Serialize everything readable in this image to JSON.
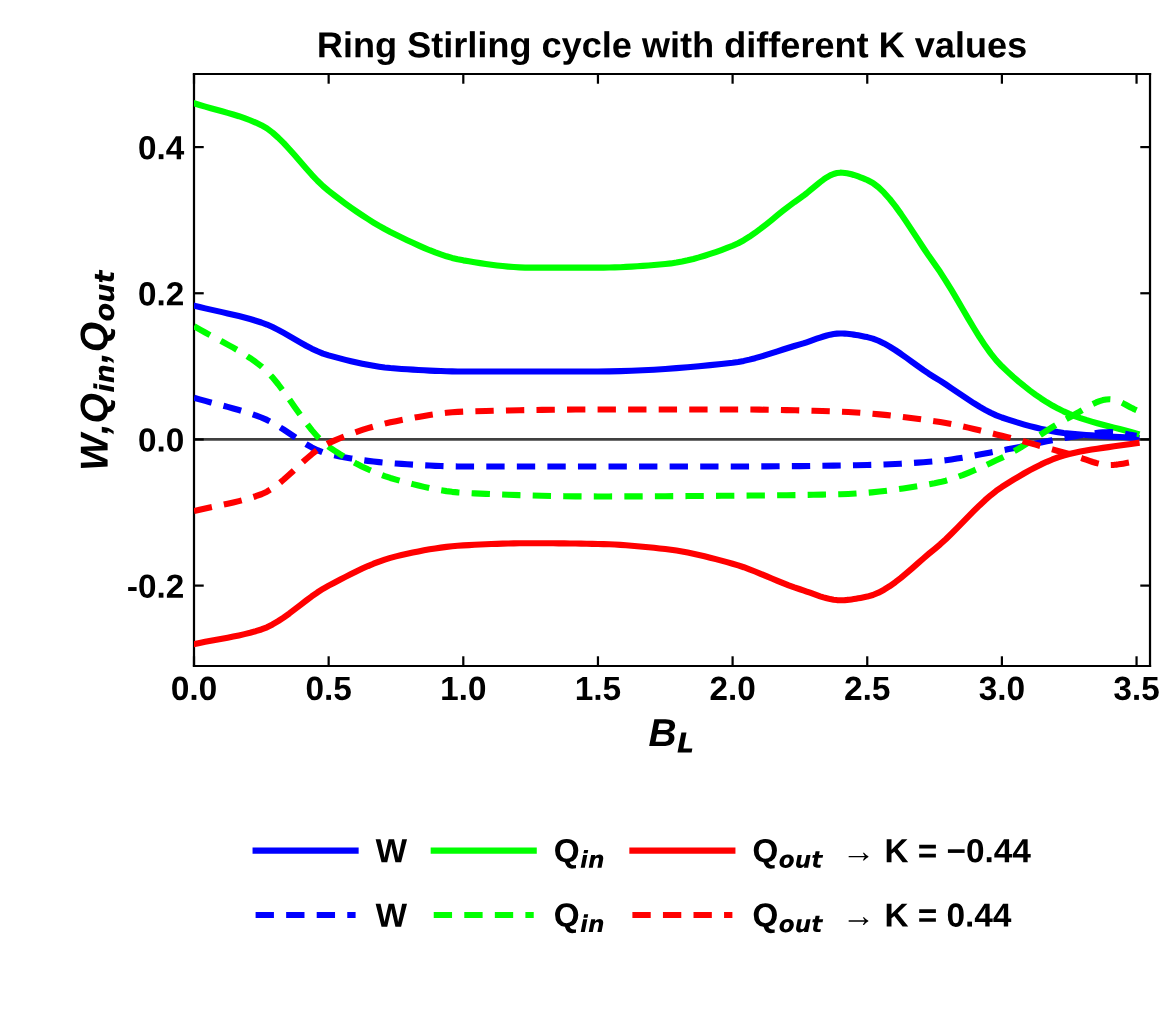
{
  "chart_data": {
    "type": "line",
    "title": "Ring Stirling cycle with different K values",
    "xlabel": "B$_{L}$",
    "ylabel": "W,Q$_{in}$,Q$_{out}$",
    "xlim": [
      0,
      3.55
    ],
    "xticks": [
      {
        "value": 0,
        "label": "0.0"
      },
      0.5,
      {
        "value": 1,
        "label": "1.0"
      },
      1.5,
      {
        "value": 2,
        "label": "2.0"
      },
      2.5,
      {
        "value": 3,
        "label": "3.0"
      },
      3.5
    ],
    "ylim": [
      -0.31,
      0.5
    ],
    "yticks": [
      {
        "value": -0.2,
        "label": "-0.2"
      },
      {
        "value": 0,
        "label": "0.0"
      },
      0.2,
      0.4
    ],
    "grid": false,
    "legend": "bottom",
    "marker": "none",
    "ref_lines": [
      {
        "axis": "y",
        "value": 0,
        "color": "#404040",
        "line_style": "solid"
      }
    ],
    "series": [
      {
        "name": "W",
        "color": "#0000ff",
        "line_style": "solid",
        "x": [
          0,
          0.25,
          0.5,
          0.75,
          1.0,
          1.5,
          2.0,
          2.25,
          2.4,
          2.5,
          2.75,
          3.0,
          3.25,
          3.5
        ],
        "values": [
          0.183,
          0.16,
          0.115,
          0.097,
          0.093,
          0.093,
          0.105,
          0.13,
          0.145,
          0.14,
          0.085,
          0.03,
          0.008,
          0.002
        ]
      },
      {
        "name": "Q$_{in}$",
        "color": "#00ff00",
        "line_style": "solid",
        "x": [
          0,
          0.25,
          0.5,
          0.75,
          1.0,
          1.25,
          1.5,
          1.75,
          2.0,
          2.25,
          2.4,
          2.5,
          2.75,
          3.0,
          3.25,
          3.5
        ],
        "values": [
          0.46,
          0.43,
          0.34,
          0.28,
          0.245,
          0.235,
          0.235,
          0.24,
          0.265,
          0.33,
          0.365,
          0.355,
          0.24,
          0.1,
          0.035,
          0.008
        ]
      },
      {
        "name": "Q$_{out}$  → K = −0.44",
        "color": "#ff0000",
        "line_style": "solid",
        "x": [
          0,
          0.25,
          0.5,
          0.75,
          1.0,
          1.25,
          1.5,
          1.75,
          2.0,
          2.25,
          2.4,
          2.5,
          2.75,
          3.0,
          3.25,
          3.5
        ],
        "values": [
          -0.28,
          -0.26,
          -0.2,
          -0.16,
          -0.145,
          -0.142,
          -0.143,
          -0.15,
          -0.17,
          -0.205,
          -0.22,
          -0.215,
          -0.15,
          -0.065,
          -0.02,
          -0.005
        ]
      },
      {
        "name": "W",
        "color": "#0000ff",
        "line_style": "dashed",
        "x": [
          0,
          0.25,
          0.5,
          0.75,
          1.0,
          2.0,
          2.5,
          2.75,
          3.0,
          3.25,
          3.4,
          3.5
        ],
        "values": [
          0.057,
          0.03,
          -0.02,
          -0.033,
          -0.037,
          -0.037,
          -0.035,
          -0.03,
          -0.015,
          0.003,
          0.01,
          0.005
        ]
      },
      {
        "name": "Q$_{in}$",
        "color": "#00ff00",
        "line_style": "dashed",
        "x": [
          0,
          0.25,
          0.5,
          0.75,
          1.0,
          1.5,
          2.0,
          2.4,
          2.75,
          3.0,
          3.25,
          3.4,
          3.5
        ],
        "values": [
          0.155,
          0.1,
          -0.01,
          -0.055,
          -0.073,
          -0.078,
          -0.077,
          -0.075,
          -0.06,
          -0.025,
          0.03,
          0.055,
          0.04
        ]
      },
      {
        "name": "Q$_{out}$  → K = 0.44",
        "color": "#ff0000",
        "line_style": "dashed",
        "x": [
          0,
          0.25,
          0.5,
          0.75,
          1.0,
          1.5,
          2.0,
          2.4,
          2.75,
          3.0,
          3.25,
          3.4,
          3.5
        ],
        "values": [
          -0.098,
          -0.075,
          -0.005,
          0.025,
          0.038,
          0.041,
          0.041,
          0.038,
          0.025,
          0.005,
          -0.02,
          -0.035,
          -0.03
        ]
      }
    ]
  }
}
